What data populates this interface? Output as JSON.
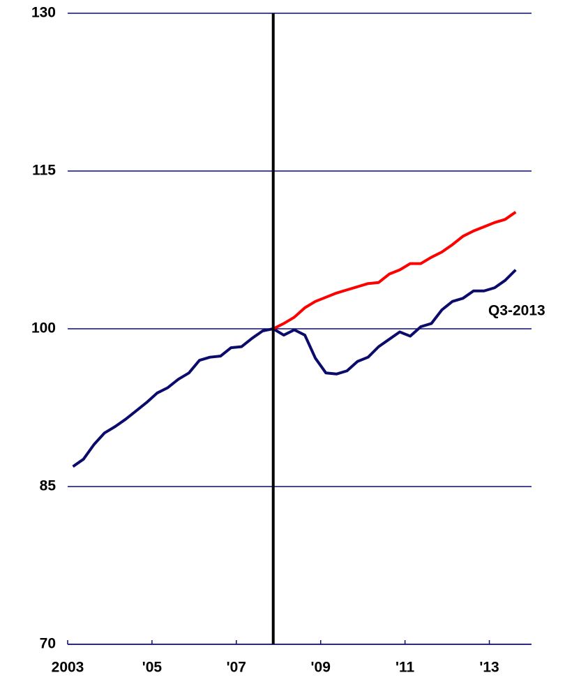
{
  "chart_data": {
    "type": "line",
    "annotation": "Q3-2013",
    "x": [
      2003.125,
      2003.375,
      2003.625,
      2003.875,
      2004.125,
      2004.375,
      2004.625,
      2004.875,
      2005.125,
      2005.375,
      2005.625,
      2005.875,
      2006.125,
      2006.375,
      2006.625,
      2006.875,
      2007.125,
      2007.375,
      2007.625,
      2007.875,
      2008.125,
      2008.375,
      2008.625,
      2008.875,
      2009.125,
      2009.375,
      2009.625,
      2009.875,
      2010.125,
      2010.375,
      2010.625,
      2010.875,
      2011.125,
      2011.375,
      2011.625,
      2011.875,
      2012.125,
      2012.375,
      2012.625,
      2012.875,
      2013.125,
      2013.375,
      2013.625
    ],
    "series": [
      {
        "color": "#0b0b6b",
        "values": [
          86.9,
          87.6,
          89.0,
          90.1,
          90.7,
          91.4,
          92.2,
          93.0,
          93.9,
          94.4,
          95.2,
          95.8,
          97.0,
          97.3,
          97.4,
          98.2,
          98.3,
          99.1,
          99.8,
          100.0,
          99.4,
          99.9,
          99.4,
          97.2,
          95.8,
          95.7,
          96.0,
          96.9,
          97.3,
          98.3,
          99.0,
          99.7,
          99.3,
          100.2,
          100.5,
          101.8,
          102.6,
          102.9,
          103.6,
          103.6,
          103.9,
          104.6,
          105.6
        ]
      },
      {
        "color": "#ff0000",
        "values": [
          null,
          null,
          null,
          null,
          null,
          null,
          null,
          null,
          null,
          null,
          null,
          null,
          null,
          null,
          null,
          null,
          null,
          null,
          null,
          100.0,
          100.5,
          101.1,
          102.0,
          102.6,
          103.0,
          103.4,
          103.7,
          104.0,
          104.3,
          104.4,
          105.2,
          105.6,
          106.2,
          106.2,
          106.8,
          107.3,
          108.0,
          108.8,
          109.3,
          109.7,
          110.1,
          110.4,
          111.1
        ]
      }
    ],
    "vline": 2007.875,
    "xlim": [
      2003,
      2014
    ],
    "xticks": [
      2003,
      {
        "value": 2005,
        "label": "'05"
      },
      {
        "value": 2007,
        "label": "'07"
      },
      {
        "value": 2009,
        "label": "'09"
      },
      {
        "value": 2011,
        "label": "'11"
      },
      {
        "value": 2013,
        "label": "'13"
      }
    ],
    "ylim": [
      70,
      130
    ],
    "yticks": [
      70,
      85,
      100,
      115,
      130
    ],
    "grid": true
  }
}
